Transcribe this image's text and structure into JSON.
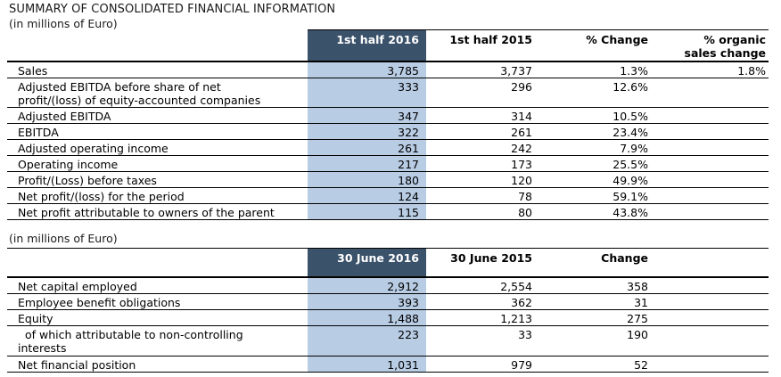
{
  "title": "SUMMARY OF CONSOLIDATED FINANCIAL INFORMATION",
  "colors": {
    "header_bg": "#3b526b",
    "header_text": "#ffffff",
    "highlight_bg": "#b8cce4",
    "border": "#000000"
  },
  "table1": {
    "units_note": "(in millions of Euro)",
    "columns": [
      "1st half 2016",
      "1st half 2015",
      "% Change",
      "% organic\nsales change"
    ],
    "rows": [
      {
        "label": "Sales",
        "values": [
          "3,785",
          "3,737",
          "1.3%",
          "1.8%"
        ]
      },
      {
        "label": "Adjusted EBITDA before share of net\nprofit/(loss) of equity-accounted companies",
        "values": [
          "333",
          "296",
          "12.6%",
          ""
        ]
      },
      {
        "label": "Adjusted EBITDA",
        "values": [
          "347",
          "314",
          "10.5%",
          ""
        ]
      },
      {
        "label": "EBITDA",
        "values": [
          "322",
          "261",
          "23.4%",
          ""
        ]
      },
      {
        "label": "Adjusted operating income",
        "values": [
          "261",
          "242",
          "7.9%",
          ""
        ]
      },
      {
        "label": "Operating income",
        "values": [
          "217",
          "173",
          "25.5%",
          ""
        ]
      },
      {
        "label": "Profit/(Loss) before taxes",
        "values": [
          "180",
          "120",
          "49.9%",
          ""
        ]
      },
      {
        "label": "Net profit/(loss) for the period",
        "values": [
          "124",
          "78",
          "59.1%",
          ""
        ]
      },
      {
        "label": "Net profit attributable to owners of the parent",
        "values": [
          "115",
          "80",
          "43.8%",
          ""
        ]
      }
    ]
  },
  "table2": {
    "units_note": "(in millions of Euro)",
    "columns": [
      "30 June 2016",
      "30 June 2015",
      "Change"
    ],
    "rows": [
      {
        "label": "Net capital employed",
        "values": [
          "2,912",
          "2,554",
          "358",
          ""
        ]
      },
      {
        "label": "Employee benefit obligations",
        "values": [
          "393",
          "362",
          "31",
          ""
        ]
      },
      {
        "label": "Equity",
        "values": [
          "1,488",
          "1,213",
          "275",
          ""
        ]
      },
      {
        "label": "of which attributable to non-controlling\ninterests",
        "values": [
          "223",
          "33",
          "190",
          ""
        ]
      },
      {
        "label": "Net financial position",
        "values": [
          "1,031",
          "979",
          "52",
          ""
        ]
      }
    ]
  }
}
